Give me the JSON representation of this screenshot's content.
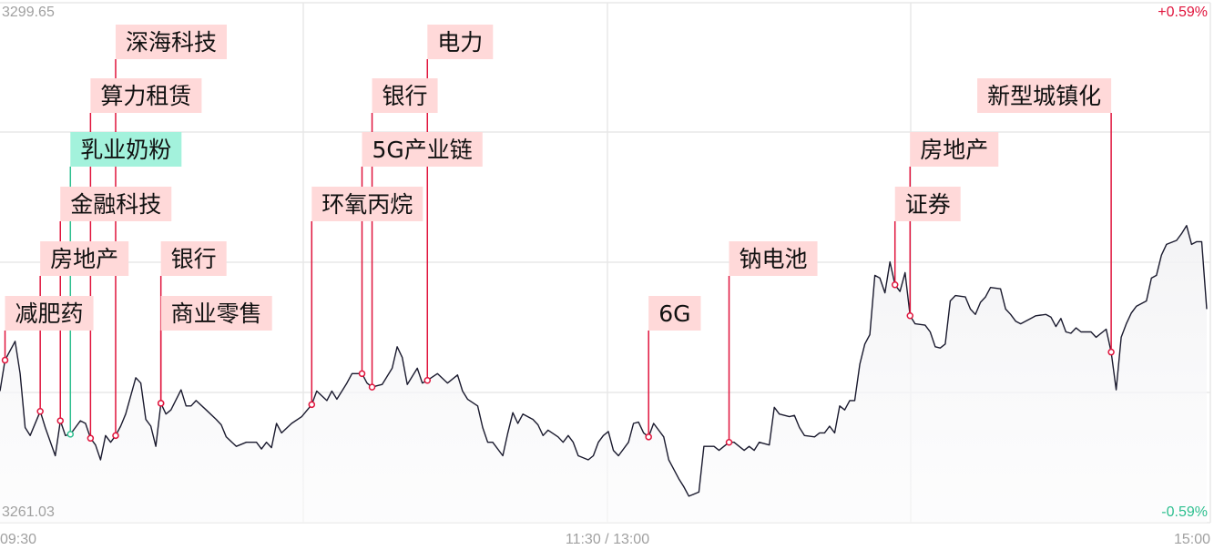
{
  "chart_data": {
    "type": "line",
    "title": "",
    "y_max_label": "3299.65",
    "y_min_label": "3261.03",
    "pct_max_label": "+0.59%",
    "pct_min_label": "-0.59%",
    "ylim": [
      3261.03,
      3299.65
    ],
    "x_ticks": [
      "09:30",
      "11:30 / 13:00",
      "15:00"
    ],
    "grid": true,
    "colors": {
      "line": "#1a1a2e",
      "up": "#e0143c",
      "down": "#2dbf8f",
      "marker_line": "#e0143c",
      "label_bg": "#ffd9d9",
      "label_bg_green": "#a3f2dc",
      "grid": "#e8e8e8"
    },
    "points": [
      [
        "09:30",
        3270.8
      ],
      [
        "09:31",
        3273.1
      ],
      [
        "09:33",
        3274.5
      ],
      [
        "09:34",
        3272.1
      ],
      [
        "09:35",
        3268.1
      ],
      [
        "09:36",
        3267.5
      ],
      [
        "09:38",
        3269.3
      ],
      [
        "09:39",
        3268.1
      ],
      [
        "09:41",
        3266.0
      ],
      [
        "09:42",
        3268.6
      ],
      [
        "09:43",
        3267.5
      ],
      [
        "09:44",
        3267.6
      ],
      [
        "09:45",
        3268.1
      ],
      [
        "09:46",
        3268.6
      ],
      [
        "09:47",
        3268.4
      ],
      [
        "09:48",
        3267.3
      ],
      [
        "09:49",
        3266.8
      ],
      [
        "09:50",
        3265.7
      ],
      [
        "09:51",
        3267.5
      ],
      [
        "09:52",
        3267.0
      ],
      [
        "09:53",
        3267.5
      ],
      [
        "09:54",
        3268.2
      ],
      [
        "09:55",
        3269.1
      ],
      [
        "09:57",
        3271.8
      ],
      [
        "09:58",
        3271.4
      ],
      [
        "09:59",
        3268.7
      ],
      [
        "10:00",
        3268.2
      ],
      [
        "10:01",
        3266.7
      ],
      [
        "10:02",
        3269.9
      ],
      [
        "10:03",
        3269.1
      ],
      [
        "10:04",
        3269.4
      ],
      [
        "10:06",
        3270.9
      ],
      [
        "10:07",
        3269.7
      ],
      [
        "10:08",
        3269.7
      ],
      [
        "10:09",
        3270.1
      ],
      [
        "10:11",
        3269.4
      ],
      [
        "10:13",
        3268.7
      ],
      [
        "10:14",
        3268.3
      ],
      [
        "10:15",
        3267.4
      ],
      [
        "10:17",
        3266.7
      ],
      [
        "10:19",
        3267.0
      ],
      [
        "10:21",
        3267.0
      ],
      [
        "10:22",
        3266.5
      ],
      [
        "10:23",
        3267.0
      ],
      [
        "10:24",
        3266.6
      ],
      [
        "10:25",
        3268.4
      ],
      [
        "10:26",
        3267.7
      ],
      [
        "10:28",
        3268.4
      ],
      [
        "10:30",
        3268.9
      ],
      [
        "10:32",
        3269.8
      ],
      [
        "10:33",
        3270.8
      ],
      [
        "10:35",
        3270.1
      ],
      [
        "10:36",
        3270.8
      ],
      [
        "10:37",
        3270.2
      ],
      [
        "10:39",
        3271.4
      ],
      [
        "10:40",
        3272.1
      ],
      [
        "10:42",
        3272.1
      ],
      [
        "10:43",
        3271.4
      ],
      [
        "10:44",
        3271.1
      ],
      [
        "10:46",
        3271.3
      ],
      [
        "10:48",
        3272.5
      ],
      [
        "10:49",
        3274.1
      ],
      [
        "10:50",
        3273.3
      ],
      [
        "10:51",
        3271.3
      ],
      [
        "10:53",
        3272.5
      ],
      [
        "10:54",
        3271.4
      ],
      [
        "10:55",
        3271.6
      ],
      [
        "10:57",
        3272.1
      ],
      [
        "10:59",
        3271.4
      ],
      [
        "11:01",
        3272.0
      ],
      [
        "11:02",
        3270.8
      ],
      [
        "11:03",
        3270.2
      ],
      [
        "11:05",
        3269.7
      ],
      [
        "11:06",
        3268.1
      ],
      [
        "11:07",
        3267.0
      ],
      [
        "11:08",
        3267.0
      ],
      [
        "11:10",
        3266.0
      ],
      [
        "11:11",
        3267.7
      ],
      [
        "11:12",
        3269.2
      ],
      [
        "11:13",
        3268.4
      ],
      [
        "11:14",
        3269.1
      ],
      [
        "11:16",
        3268.7
      ],
      [
        "11:17",
        3268.3
      ],
      [
        "11:18",
        3267.5
      ],
      [
        "11:19",
        3267.9
      ],
      [
        "11:21",
        3267.4
      ],
      [
        "11:22",
        3267.0
      ],
      [
        "11:23",
        3267.5
      ],
      [
        "11:24",
        3267.0
      ],
      [
        "11:25",
        3266.0
      ],
      [
        "11:27",
        3265.7
      ],
      [
        "11:28",
        3266.0
      ],
      [
        "11:29",
        3267.0
      ],
      [
        "11:30",
        3267.5
      ],
      [
        "13:01",
        3267.8
      ],
      [
        "13:02",
        3266.4
      ],
      [
        "13:03",
        3266.0
      ],
      [
        "13:05",
        3267.0
      ],
      [
        "13:06",
        3268.4
      ],
      [
        "13:07",
        3268.5
      ],
      [
        "13:08",
        3267.7
      ],
      [
        "13:09",
        3267.4
      ],
      [
        "13:10",
        3268.4
      ],
      [
        "13:12",
        3267.4
      ],
      [
        "13:13",
        3265.7
      ],
      [
        "13:14",
        3265.0
      ],
      [
        "13:15",
        3264.3
      ],
      [
        "13:16",
        3263.7
      ],
      [
        "13:17",
        3263.0
      ],
      [
        "13:19",
        3263.3
      ],
      [
        "13:20",
        3266.7
      ],
      [
        "13:21",
        3266.7
      ],
      [
        "13:22",
        3266.7
      ],
      [
        "13:23",
        3266.4
      ],
      [
        "13:25",
        3267.0
      ],
      [
        "13:26",
        3267.0
      ],
      [
        "13:27",
        3266.7
      ],
      [
        "13:28",
        3266.4
      ],
      [
        "13:29",
        3266.7
      ],
      [
        "13:30",
        3266.4
      ],
      [
        "13:31",
        3267.0
      ],
      [
        "13:33",
        3266.8
      ],
      [
        "13:34",
        3269.6
      ],
      [
        "13:35",
        3269.1
      ],
      [
        "13:37",
        3268.9
      ],
      [
        "13:38",
        3269.0
      ],
      [
        "13:39",
        3268.1
      ],
      [
        "13:40",
        3267.5
      ],
      [
        "13:42",
        3267.4
      ],
      [
        "13:43",
        3267.7
      ],
      [
        "13:44",
        3267.7
      ],
      [
        "13:45",
        3268.2
      ],
      [
        "13:46",
        3267.7
      ],
      [
        "13:47",
        3269.7
      ],
      [
        "13:48",
        3269.4
      ],
      [
        "13:49",
        3270.1
      ],
      [
        "13:50",
        3270.1
      ],
      [
        "13:51",
        3272.8
      ],
      [
        "13:52",
        3274.3
      ],
      [
        "13:53",
        3275.0
      ],
      [
        "13:54",
        3279.4
      ],
      [
        "13:55",
        3279.2
      ],
      [
        "13:56",
        3278.1
      ],
      [
        "13:57",
        3280.4
      ],
      [
        "13:58",
        3278.7
      ],
      [
        "13:59",
        3278.2
      ],
      [
        "14:00",
        3279.6
      ],
      [
        "14:01",
        3276.4
      ],
      [
        "14:02",
        3275.8
      ],
      [
        "14:04",
        3275.7
      ],
      [
        "14:05",
        3275.2
      ],
      [
        "14:06",
        3274.1
      ],
      [
        "14:07",
        3274.0
      ],
      [
        "14:08",
        3274.3
      ],
      [
        "14:09",
        3277.5
      ],
      [
        "14:10",
        3277.9
      ],
      [
        "14:12",
        3277.8
      ],
      [
        "14:13",
        3276.9
      ],
      [
        "14:14",
        3276.5
      ],
      [
        "14:15",
        3277.4
      ],
      [
        "14:16",
        3277.8
      ],
      [
        "14:17",
        3278.5
      ],
      [
        "14:19",
        3278.4
      ],
      [
        "14:20",
        3276.9
      ],
      [
        "14:21",
        3276.5
      ],
      [
        "14:22",
        3276.0
      ],
      [
        "14:23",
        3275.8
      ],
      [
        "14:25",
        3276.2
      ],
      [
        "14:26",
        3276.4
      ],
      [
        "14:28",
        3276.5
      ],
      [
        "14:29",
        3276.3
      ],
      [
        "14:30",
        3275.6
      ],
      [
        "14:31",
        3276.2
      ],
      [
        "14:32",
        3275.2
      ],
      [
        "14:33",
        3275.1
      ],
      [
        "14:34",
        3275.5
      ],
      [
        "14:35",
        3275.2
      ],
      [
        "14:37",
        3275.2
      ],
      [
        "14:38",
        3274.8
      ],
      [
        "14:40",
        3275.4
      ],
      [
        "14:41",
        3273.7
      ],
      [
        "14:42",
        3270.9
      ],
      [
        "14:43",
        3274.8
      ],
      [
        "14:44",
        3275.8
      ],
      [
        "14:45",
        3276.6
      ],
      [
        "14:46",
        3277.1
      ],
      [
        "14:48",
        3277.5
      ],
      [
        "14:49",
        3279.2
      ],
      [
        "14:50",
        3279.4
      ],
      [
        "14:51",
        3280.9
      ],
      [
        "14:52",
        3281.7
      ],
      [
        "14:54",
        3282.0
      ],
      [
        "14:55",
        3282.5
      ],
      [
        "14:56",
        3283.1
      ],
      [
        "14:57",
        3281.7
      ],
      [
        "14:58",
        3281.9
      ],
      [
        "14:59",
        3281.9
      ],
      [
        "15:00",
        3276.9
      ]
    ],
    "annotations": [
      {
        "label": "减肥药",
        "time": "09:31",
        "price": 3273.1,
        "color": "red"
      },
      {
        "label": "房地产",
        "time": "09:38",
        "price": 3269.3,
        "color": "red"
      },
      {
        "label": "金融科技",
        "time": "09:42",
        "price": 3268.6,
        "color": "red"
      },
      {
        "label": "乳业奶粉",
        "time": "09:44",
        "price": 3267.6,
        "color": "green"
      },
      {
        "label": "算力租赁",
        "time": "09:48",
        "price": 3267.3,
        "color": "red"
      },
      {
        "label": "深海科技",
        "time": "09:53",
        "price": 3267.5,
        "color": "red"
      },
      {
        "label": "银行",
        "time": "10:02",
        "price": 3269.9,
        "color": "red"
      },
      {
        "label": "商业零售",
        "time": "10:02",
        "price": 3269.9,
        "color": "red"
      },
      {
        "label": "环氧丙烷",
        "time": "10:32",
        "price": 3269.8,
        "color": "red"
      },
      {
        "label": "5G产业链",
        "time": "10:42",
        "price": 3272.1,
        "color": "red"
      },
      {
        "label": "银行",
        "time": "10:44",
        "price": 3271.1,
        "color": "red"
      },
      {
        "label": "电力",
        "time": "10:55",
        "price": 3271.6,
        "color": "red"
      },
      {
        "label": "6G",
        "time": "13:09",
        "price": 3267.4,
        "color": "red"
      },
      {
        "label": "钠电池",
        "time": "13:25",
        "price": 3267.0,
        "color": "red"
      },
      {
        "label": "证券",
        "time": "13:58",
        "price": 3278.7,
        "color": "red"
      },
      {
        "label": "房地产",
        "time": "14:01",
        "price": 3276.4,
        "color": "red"
      },
      {
        "label": "新型城镇化",
        "time": "14:41",
        "price": 3273.7,
        "color": "red"
      }
    ]
  }
}
